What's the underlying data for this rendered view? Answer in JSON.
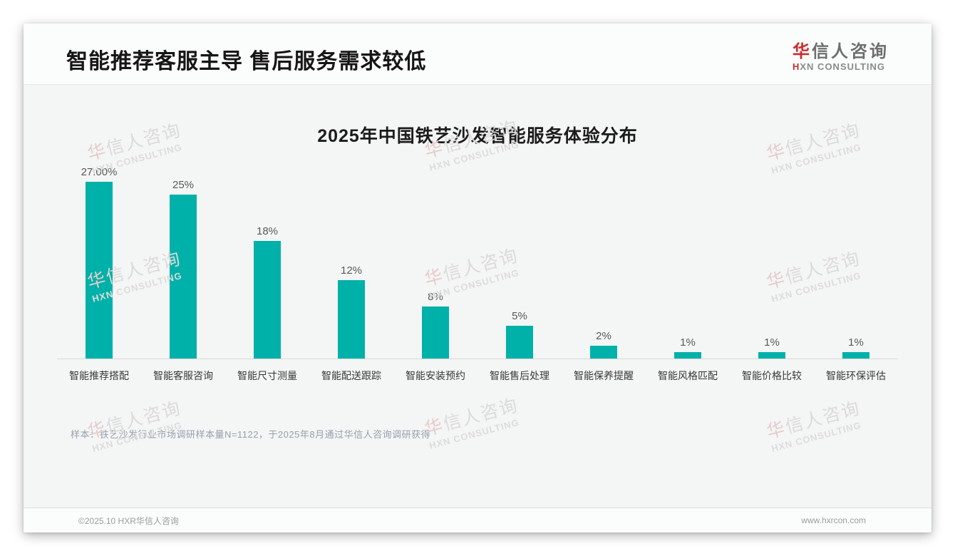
{
  "page": {
    "title": "智能推荐客服主导 售后服务需求较低",
    "logo": {
      "cn_first": "华",
      "cn_rest": "信人咨询",
      "en_first": "H",
      "en_rest": "XN CONSULTING"
    },
    "watermark": {
      "cn_first": "华",
      "cn_rest": "信人咨询",
      "en": "HXN CONSULTING"
    }
  },
  "chart_data": {
    "type": "bar",
    "title": "2025年中国铁艺沙发智能服务体验分布",
    "categories": [
      "智能推荐搭配",
      "智能客服咨询",
      "智能尺寸测量",
      "智能配送跟踪",
      "智能安装预约",
      "智能售后处理",
      "智能保养提醒",
      "智能风格匹配",
      "智能价格比较",
      "智能环保评估"
    ],
    "values": [
      27,
      25,
      18,
      12,
      8,
      5,
      2,
      1,
      1,
      1
    ],
    "value_labels": [
      "27.00%",
      "25%",
      "18%",
      "12%",
      "8%",
      "5%",
      "2%",
      "1%",
      "1%",
      "1%"
    ],
    "unit": "%",
    "bar_color": "#00b1a9",
    "ylim": [
      0,
      30
    ],
    "grid": false,
    "legend": false,
    "xlabel": "",
    "ylabel": ""
  },
  "footnote": "样本：铁艺沙发行业市场调研样本量N=1122，于2025年8月通过华信人咨询调研获得",
  "footer": {
    "left": "©2025.10 HXR华信人咨询",
    "right": "www.hxrcon.com"
  }
}
